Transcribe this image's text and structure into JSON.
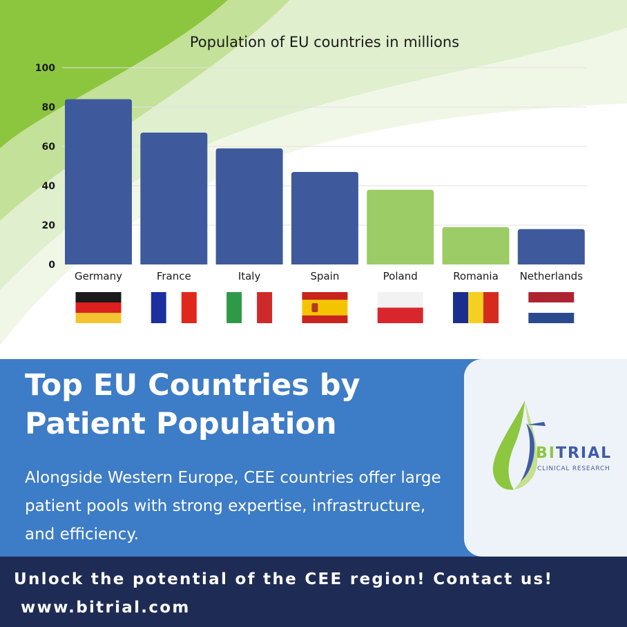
{
  "chart_data": {
    "type": "bar",
    "title": "Population of EU countries in millions",
    "xlabel": "",
    "ylabel": "",
    "categories": [
      "Germany",
      "France",
      "Italy",
      "Spain",
      "Poland",
      "Romania",
      "Netherlands"
    ],
    "values": [
      84,
      67,
      59,
      47,
      38,
      19,
      18
    ],
    "ylim": [
      0,
      100
    ],
    "yticks": [
      0,
      20,
      40,
      60,
      80,
      100
    ],
    "grid": true,
    "bar_colors": [
      "#3f5a9c",
      "#3f5a9c",
      "#3f5a9c",
      "#3f5a9c",
      "#9ccc65",
      "#9ccc65",
      "#3f5a9c"
    ],
    "flags": [
      "germany-flag",
      "france-flag",
      "italy-flag",
      "spain-flag",
      "poland-flag",
      "romania-flag",
      "netherlands-flag"
    ]
  },
  "panel": {
    "headline": "Top EU Countries by Patient Population",
    "body": "Alongside Western Europe, CEE countries offer large patient pools with strong expertise, infrastructure, and efficiency."
  },
  "logo": {
    "name_part1": "BI",
    "name_part2": "TRIAL",
    "subtitle": "CLINICAL RESEARCH"
  },
  "footer": {
    "cta": "Unlock the potential of the CEE region! Contact us!",
    "url": "www.bitrial.com"
  },
  "colors": {
    "western_bar": "#3f5a9c",
    "cee_bar": "#9ccc65",
    "panel_blue": "#3d7cc6",
    "footer_navy": "#1e2c55",
    "accent_green": "#8dc63f"
  }
}
